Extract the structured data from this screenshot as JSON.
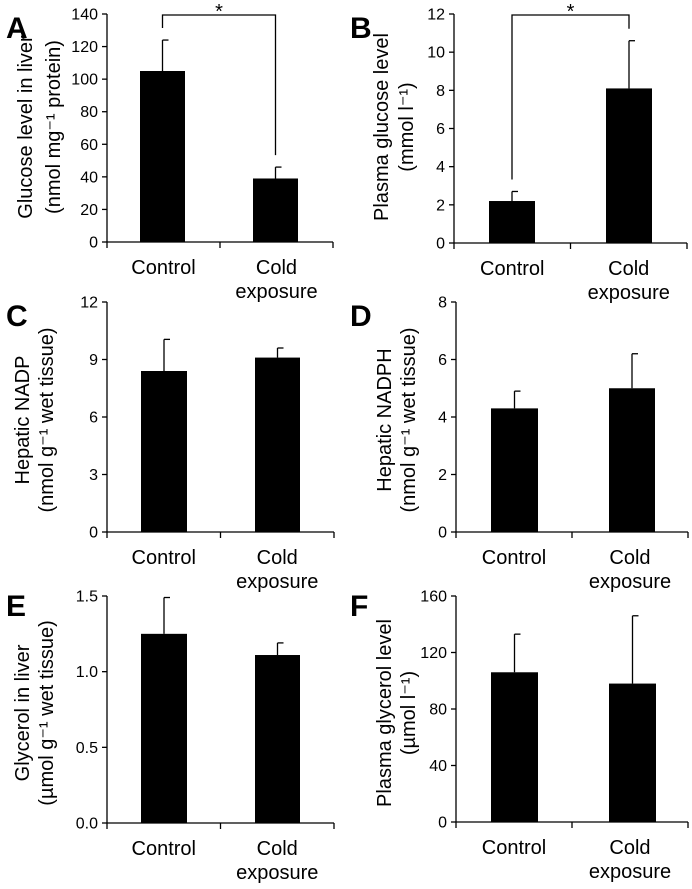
{
  "chart_data": [
    {
      "panel": "A",
      "type": "bar",
      "categories": [
        "Control",
        "Cold exposure"
      ],
      "category_lines": [
        [
          "Control"
        ],
        [
          "Cold",
          "exposure"
        ]
      ],
      "values": [
        105,
        39
      ],
      "errors": [
        19,
        7
      ],
      "ylabel": [
        "Glucose level in liver",
        "(nmol mg⁻¹ protein)"
      ],
      "ylim": [
        0,
        140
      ],
      "yticks": [
        0,
        20,
        40,
        60,
        80,
        100,
        120,
        140
      ],
      "ytick_labels": [
        "0",
        "20",
        "40",
        "60",
        "80",
        "100",
        "120",
        "140"
      ],
      "significance": "*",
      "bar_color": "#000000"
    },
    {
      "panel": "B",
      "type": "bar",
      "categories": [
        "Control",
        "Cold exposure"
      ],
      "category_lines": [
        [
          "Control"
        ],
        [
          "Cold",
          "exposure"
        ]
      ],
      "values": [
        2.2,
        8.1
      ],
      "errors": [
        0.5,
        2.5
      ],
      "ylabel": [
        "Plasma glucose level",
        "(mmol l⁻¹)"
      ],
      "ylim": [
        0,
        12
      ],
      "yticks": [
        0,
        2,
        4,
        6,
        8,
        10,
        12
      ],
      "ytick_labels": [
        "0",
        "2",
        "4",
        "6",
        "8",
        "10",
        "12"
      ],
      "significance": "*",
      "bar_color": "#000000"
    },
    {
      "panel": "C",
      "type": "bar",
      "categories": [
        "Control",
        "Cold exposure"
      ],
      "category_lines": [
        [
          "Control"
        ],
        [
          "Cold",
          "exposure"
        ]
      ],
      "values": [
        8.4,
        9.1
      ],
      "errors": [
        1.65,
        0.5
      ],
      "ylabel": [
        "Hepatic NADP",
        "(nmol g⁻¹ wet tissue)"
      ],
      "ylim": [
        0,
        12
      ],
      "yticks": [
        0,
        3,
        6,
        9,
        12
      ],
      "ytick_labels": [
        "0",
        "3",
        "6",
        "9",
        "12"
      ],
      "bar_color": "#000000"
    },
    {
      "panel": "D",
      "type": "bar",
      "categories": [
        "Control",
        "Cold exposure"
      ],
      "category_lines": [
        [
          "Control"
        ],
        [
          "Cold",
          "exposure"
        ]
      ],
      "values": [
        4.3,
        5.0
      ],
      "errors": [
        0.6,
        1.2
      ],
      "ylabel": [
        "Hepatic NADPH",
        "(nmol g⁻¹ wet tissue)"
      ],
      "ylim": [
        0,
        8
      ],
      "yticks": [
        0,
        2,
        4,
        6,
        8
      ],
      "ytick_labels": [
        "0",
        "2",
        "4",
        "6",
        "8"
      ],
      "bar_color": "#000000"
    },
    {
      "panel": "E",
      "type": "bar",
      "categories": [
        "Control",
        "Cold exposure"
      ],
      "category_lines": [
        [
          "Control"
        ],
        [
          "Cold",
          "exposure"
        ]
      ],
      "values": [
        1.25,
        1.11
      ],
      "errors": [
        0.24,
        0.08
      ],
      "ylabel": [
        "Glycerol in liver",
        "(µmol g⁻¹ wet tissue)"
      ],
      "ylim": [
        0,
        1.5
      ],
      "yticks": [
        0,
        0.5,
        1.0,
        1.5
      ],
      "ytick_labels": [
        "0.0",
        "0.5",
        "1.0",
        "1.5"
      ],
      "bar_color": "#000000"
    },
    {
      "panel": "F",
      "type": "bar",
      "categories": [
        "Control",
        "Cold exposure"
      ],
      "category_lines": [
        [
          "Control"
        ],
        [
          "Cold",
          "exposure"
        ]
      ],
      "values": [
        106,
        98
      ],
      "errors": [
        27,
        48
      ],
      "ylabel": [
        "Plasma glycerol level",
        "(µmol l⁻¹)"
      ],
      "ylim": [
        0,
        160
      ],
      "yticks": [
        0,
        40,
        80,
        120,
        160
      ],
      "ytick_labels": [
        "0",
        "40",
        "80",
        "120",
        "160"
      ],
      "bar_color": "#000000"
    }
  ]
}
